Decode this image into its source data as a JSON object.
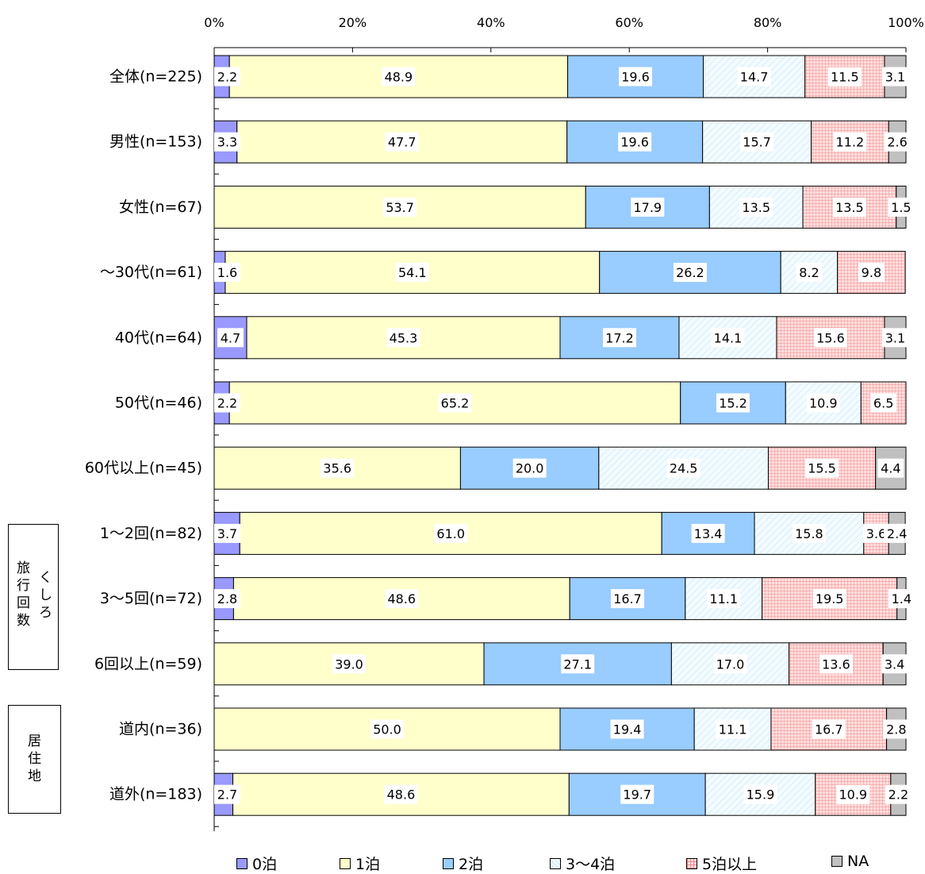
{
  "chart_data": {
    "type": "bar",
    "orientation": "horizontal",
    "stacked": true,
    "percent": true,
    "axis_ticks": [
      "0%",
      "20%",
      "40%",
      "60%",
      "80%",
      "100%"
    ],
    "xlim": [
      0,
      100
    ],
    "categories": [
      "全体(n=225)",
      "男性(n=153)",
      "女性(n=67)",
      "～30代(n=61)",
      "40代(n=64)",
      "50代(n=46)",
      "60代以上(n=45)",
      "1～2回(n=82)",
      "3～5回(n=72)",
      "6回以上(n=59)",
      "道内(n=36)",
      "道外(n=183)"
    ],
    "series": [
      {
        "name": "0泊",
        "color": "#9999ff",
        "pattern": "solid",
        "values": [
          2.2,
          3.3,
          0,
          1.6,
          4.7,
          2.2,
          0,
          3.7,
          2.8,
          0,
          0,
          2.7
        ],
        "labels": [
          "2.2",
          "3.3",
          "",
          "1.6",
          "4.7",
          "2.2",
          "",
          "3.7",
          "2.8",
          "",
          "",
          "2.7"
        ]
      },
      {
        "name": "1泊",
        "color": "#ffffcc",
        "pattern": "solid",
        "values": [
          48.9,
          47.7,
          53.7,
          54.1,
          45.3,
          65.2,
          35.6,
          61.0,
          48.6,
          39.0,
          50.0,
          48.6
        ],
        "labels": [
          "48.9",
          "47.7",
          "53.7",
          "54.1",
          "45.3",
          "65.2",
          "35.6",
          "61.0",
          "48.6",
          "39.0",
          "50.0",
          "48.6"
        ]
      },
      {
        "name": "2泊",
        "color": "#99ccff",
        "pattern": "solid",
        "values": [
          19.6,
          19.6,
          17.9,
          26.2,
          17.2,
          15.2,
          20.0,
          13.4,
          16.7,
          27.1,
          19.4,
          19.7
        ],
        "labels": [
          "19.6",
          "19.6",
          "17.9",
          "26.2",
          "17.2",
          "15.2",
          "20.0",
          "13.4",
          "16.7",
          "27.1",
          "19.4",
          "19.7"
        ]
      },
      {
        "name": "3～4泊",
        "color": "#f2fbff",
        "pattern": "hatch",
        "values": [
          14.7,
          15.7,
          13.5,
          8.2,
          14.1,
          10.9,
          24.5,
          15.8,
          11.1,
          17.0,
          11.1,
          15.9
        ],
        "labels": [
          "14.7",
          "15.7",
          "13.5",
          "8.2",
          "14.1",
          "10.9",
          "24.5",
          "15.8",
          "11.1",
          "17.0",
          "11.1",
          "15.9"
        ]
      },
      {
        "name": "5泊以上",
        "color": "#ffcccc",
        "pattern": "grid",
        "values": [
          11.5,
          11.2,
          13.5,
          9.8,
          15.6,
          6.5,
          15.5,
          3.6,
          19.5,
          13.6,
          16.7,
          10.9
        ],
        "labels": [
          "11.5",
          "11.2",
          "13.5",
          "9.8",
          "15.6",
          "6.5",
          "15.5",
          "3.6",
          "19.5",
          "13.6",
          "16.7",
          "10.9"
        ]
      },
      {
        "name": "NA",
        "color": "#c0c0c0",
        "pattern": "solid",
        "values": [
          3.1,
          2.6,
          1.5,
          0,
          3.1,
          0,
          4.4,
          2.4,
          1.4,
          3.4,
          2.8,
          2.2
        ],
        "labels": [
          "3.1",
          "2.6",
          "1.5",
          "",
          "3.1",
          "",
          "4.4",
          "2.4",
          "1.4",
          "3.4",
          "2.8",
          "2.2"
        ]
      }
    ],
    "groups": [
      {
        "label": "旅行回数",
        "sub_label": "くしろ",
        "rows": [
          "1～2回(n=82)",
          "3～5回(n=72)",
          "6回以上(n=59)"
        ]
      },
      {
        "label": "居住地",
        "rows": [
          "道内(n=36)",
          "道外(n=183)"
        ]
      }
    ],
    "legend_position": "bottom"
  }
}
